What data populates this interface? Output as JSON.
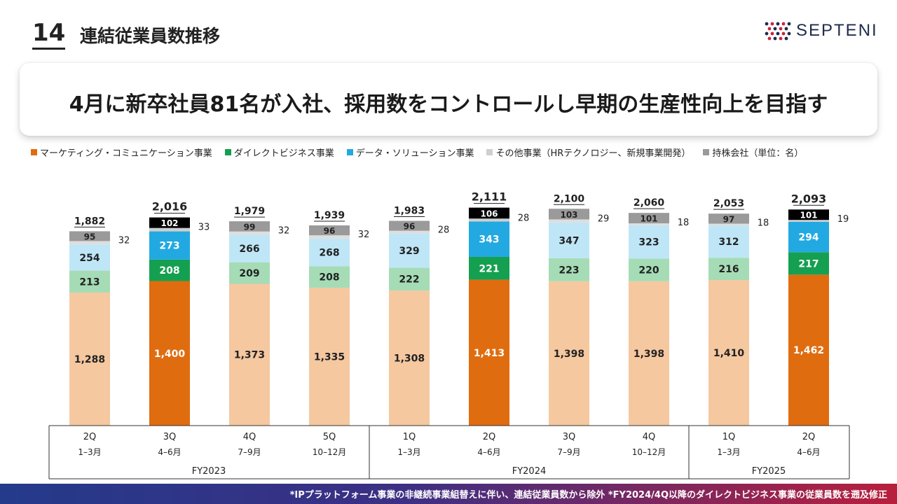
{
  "header": {
    "page_number": "14",
    "title": "連結従業員数推移",
    "logo_text": "SEPTENI"
  },
  "banner": {
    "text": "4月に新卒社員81名が入社、採用数をコントロールし早期の生産性向上を目指す"
  },
  "footer": {
    "note": "*IPプラットフォーム事業の非継続事業組替えに伴い、連結従業員数から除外 *FY2024/4Q以降のダイレクトビジネス事業の従業員数を遡及修正"
  },
  "colors": {
    "brand_blue": "#1f2b4d",
    "brand_red": "#c8243c"
  },
  "chart_data": {
    "type": "bar",
    "stacked": true,
    "legend_position": "top",
    "series": [
      {
        "name": "マーケティング・コミュニケーション事業",
        "color": "#e06c10",
        "light": "#f5c8a0",
        "values": [
          1288,
          1400,
          1373,
          1335,
          1308,
          1413,
          1398,
          1398,
          1410,
          1462
        ]
      },
      {
        "name": "ダイレクトビジネス事業",
        "color": "#14a050",
        "light": "#a5dcb6",
        "values": [
          213,
          208,
          209,
          208,
          222,
          221,
          223,
          220,
          216,
          217
        ]
      },
      {
        "name": "データ・ソリューション事業",
        "color": "#22a9e1",
        "light": "#bfe6f7",
        "values": [
          254,
          273,
          266,
          268,
          329,
          343,
          347,
          323,
          312,
          294
        ]
      },
      {
        "name": "その他事業（HRテクノロジー、新規事業開発）",
        "color": "#cfcfcf",
        "light": "#dedede",
        "values": [
          32,
          33,
          32,
          32,
          28,
          28,
          29,
          18,
          18,
          19
        ]
      },
      {
        "name": "持株会社（単位：名）",
        "color": "#000000",
        "light": "#9a9a9a",
        "values": [
          95,
          102,
          99,
          96,
          96,
          106,
          103,
          101,
          97,
          101
        ]
      }
    ],
    "totals": [
      1882,
      2016,
      1979,
      1939,
      1983,
      2111,
      2100,
      2060,
      2053,
      2093
    ],
    "categories": [
      {
        "quarter": "2Q",
        "months": "1–3月"
      },
      {
        "quarter": "3Q",
        "months": "4–6月"
      },
      {
        "quarter": "4Q",
        "months": "7–9月"
      },
      {
        "quarter": "5Q",
        "months": "10–12月"
      },
      {
        "quarter": "1Q",
        "months": "1–3月"
      },
      {
        "quarter": "2Q",
        "months": "4–6月"
      },
      {
        "quarter": "3Q",
        "months": "7–9月"
      },
      {
        "quarter": "4Q",
        "months": "10–12月"
      },
      {
        "quarter": "1Q",
        "months": "1–3月"
      },
      {
        "quarter": "2Q",
        "months": "4–6月"
      }
    ],
    "highlighted": [
      false,
      true,
      false,
      false,
      false,
      true,
      false,
      false,
      false,
      true
    ],
    "groups": [
      {
        "label": "FY2023",
        "start": 0,
        "end": 3
      },
      {
        "label": "FY2024",
        "start": 4,
        "end": 7
      },
      {
        "label": "FY2025",
        "start": 8,
        "end": 9
      }
    ],
    "ylim": [
      0,
      2200
    ]
  }
}
